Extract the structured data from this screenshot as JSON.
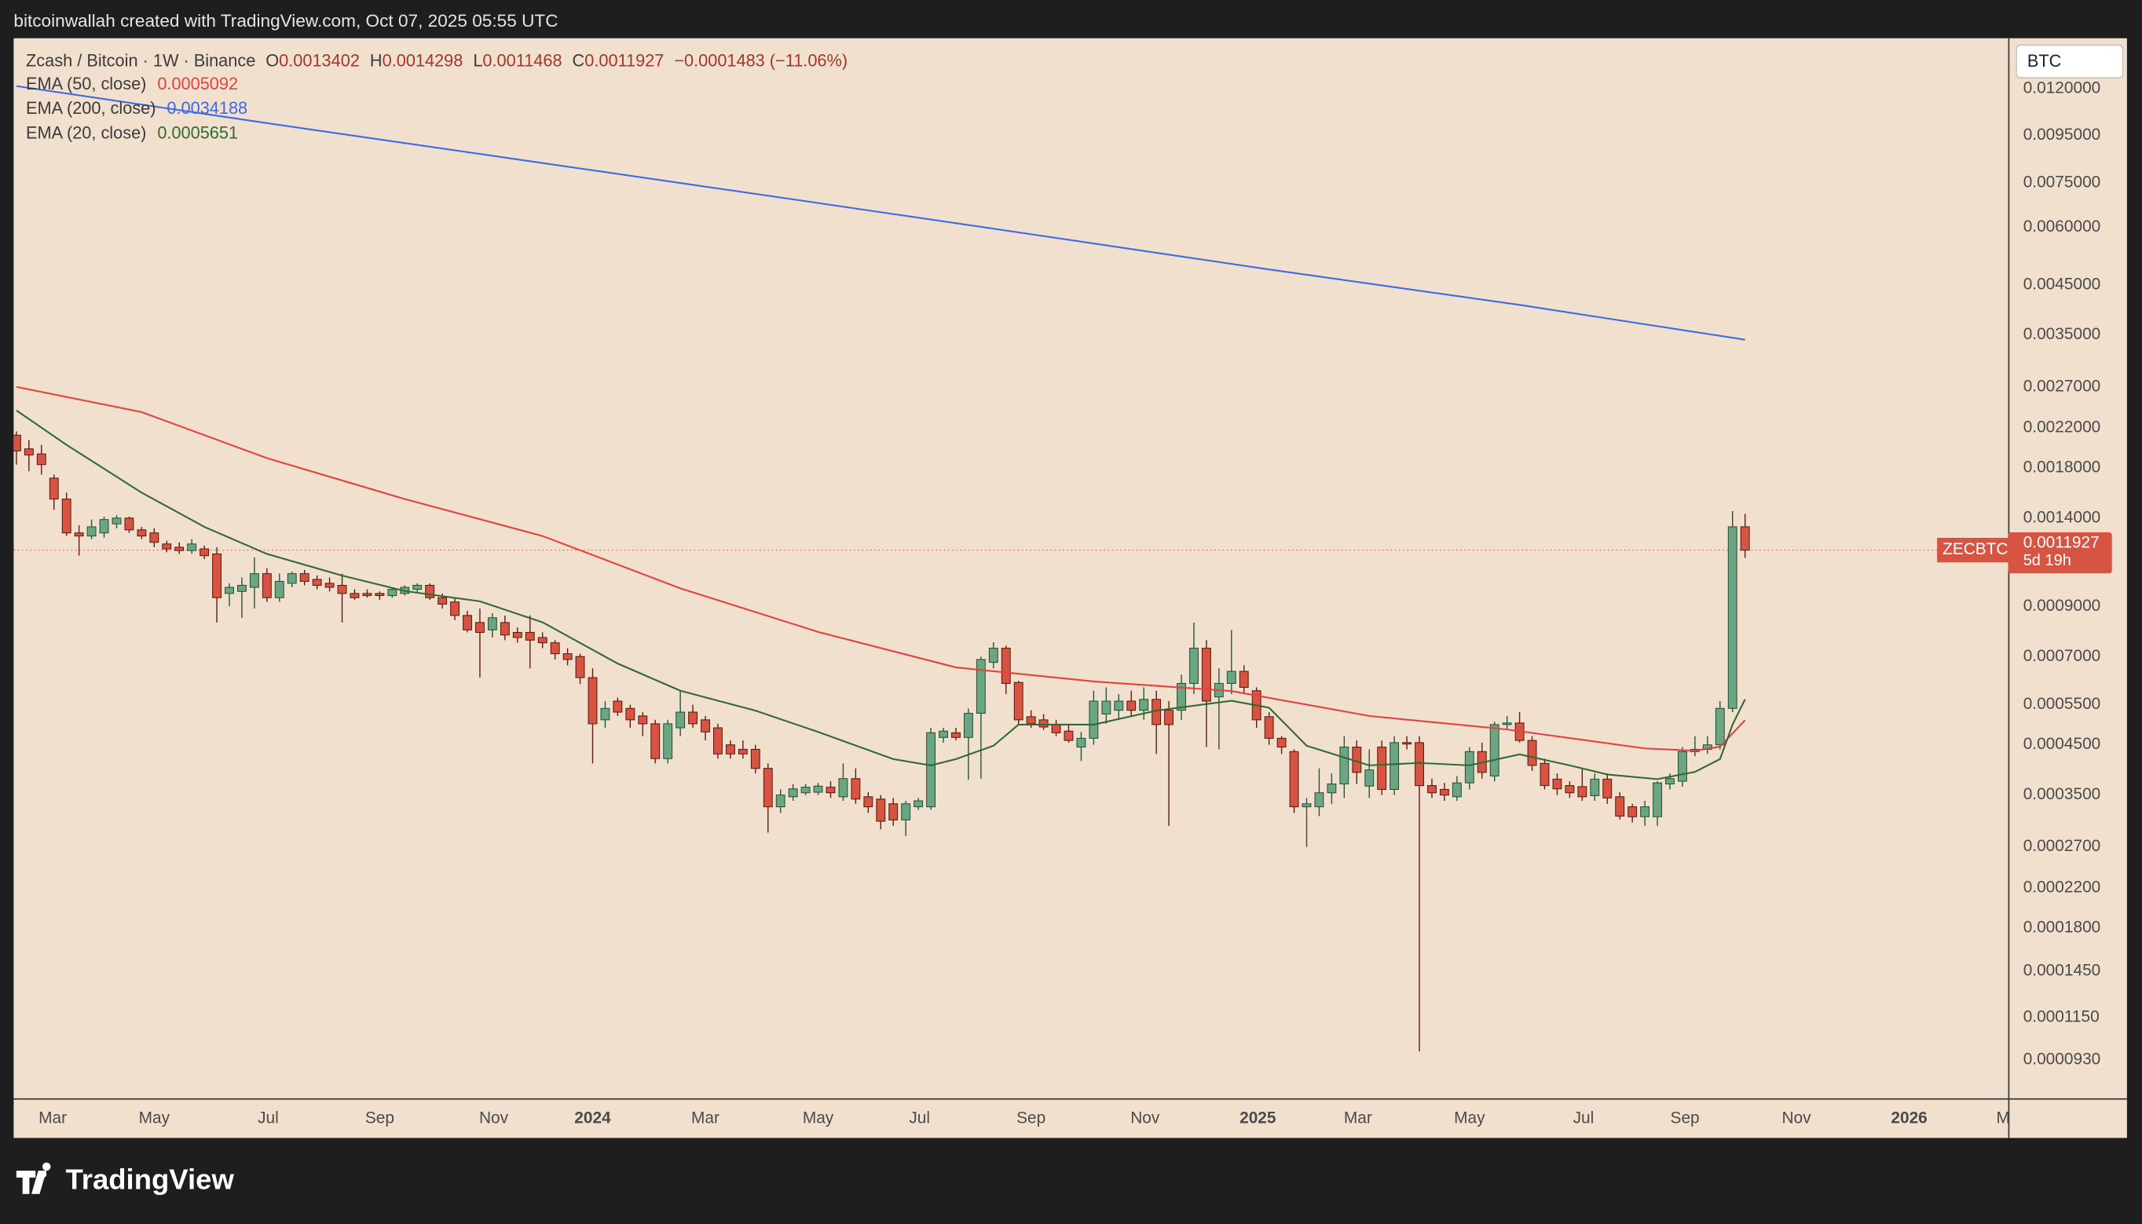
{
  "header": {
    "text": "bitcoinwallah created with TradingView.com, Oct 07, 2025 05:55 UTC"
  },
  "chart_data": {
    "type": "candlestick",
    "title": "Zcash / Bitcoin · 1W · Binance",
    "symbol": "ZECBTC",
    "countdown": "5d 19h",
    "currency": "BTC",
    "ohlc_prefixes": [
      "O",
      "H",
      "L",
      "C"
    ],
    "change_label": "−0.0001483 (−11.06%)",
    "up_color": "#6ba583",
    "up_border": "#225437",
    "down_color": "#d75442",
    "down_border": "#5b1a13",
    "candles": [
      [
        0.00212,
        0.00216,
        0.00183,
        0.00196
      ],
      [
        0.00198,
        0.00207,
        0.00177,
        0.00192
      ],
      [
        0.00193,
        0.00202,
        0.00174,
        0.00183
      ],
      [
        0.00171,
        0.00174,
        0.00146,
        0.00154
      ],
      [
        0.00154,
        0.00159,
        0.00128,
        0.0013
      ],
      [
        0.0013,
        0.00135,
        0.00116,
        0.00128
      ],
      [
        0.00128,
        0.00139,
        0.00126,
        0.00134
      ],
      [
        0.0013,
        0.00141,
        0.00127,
        0.00139
      ],
      [
        0.00136,
        0.00142,
        0.00133,
        0.0014
      ],
      [
        0.0014,
        0.00141,
        0.0013,
        0.00132
      ],
      [
        0.00132,
        0.00134,
        0.00126,
        0.00128
      ],
      [
        0.0013,
        0.00133,
        0.00121,
        0.00124
      ],
      [
        0.00123,
        0.00125,
        0.00118,
        0.0012
      ],
      [
        0.00121,
        0.00124,
        0.00117,
        0.00119
      ],
      [
        0.00119,
        0.00126,
        0.00117,
        0.00123
      ],
      [
        0.0012,
        0.00122,
        0.00114,
        0.00116
      ],
      [
        0.00117,
        0.00121,
        0.00083,
        0.00094
      ],
      [
        0.00096,
        0.00101,
        0.0009,
        0.00099
      ],
      [
        0.00097,
        0.00104,
        0.00085,
        0.001
      ],
      [
        0.00099,
        0.00115,
        0.00089,
        0.00106
      ],
      [
        0.00106,
        0.00109,
        0.00092,
        0.00094
      ],
      [
        0.00094,
        0.00106,
        0.00092,
        0.00102
      ],
      [
        0.00101,
        0.00107,
        0.00099,
        0.00106
      ],
      [
        0.00106,
        0.00108,
        0.001,
        0.00102
      ],
      [
        0.00103,
        0.00105,
        0.00098,
        0.001
      ],
      [
        0.00101,
        0.00104,
        0.00097,
        0.00099
      ],
      [
        0.001,
        0.00106,
        0.00083,
        0.00096
      ],
      [
        0.00096,
        0.00098,
        0.00093,
        0.00094
      ],
      [
        0.00096,
        0.00098,
        0.00094,
        0.00095
      ],
      [
        0.00096,
        0.00097,
        0.00093,
        0.00095
      ],
      [
        0.00095,
        0.00099,
        0.00094,
        0.00098
      ],
      [
        0.00096,
        0.001,
        0.00095,
        0.00099
      ],
      [
        0.00098,
        0.00101,
        0.00096,
        0.001
      ],
      [
        0.001,
        0.00101,
        0.00093,
        0.00094
      ],
      [
        0.00094,
        0.00096,
        0.00089,
        0.00091
      ],
      [
        0.00092,
        0.00094,
        0.00084,
        0.00086
      ],
      [
        0.00086,
        0.00088,
        0.00079,
        0.0008
      ],
      [
        0.00083,
        0.00089,
        0.00063,
        0.00079
      ],
      [
        0.0008,
        0.00087,
        0.00077,
        0.00085
      ],
      [
        0.00083,
        0.00086,
        0.00076,
        0.00078
      ],
      [
        0.00079,
        0.00081,
        0.00075,
        0.00077
      ],
      [
        0.00079,
        0.00086,
        0.00066,
        0.00076
      ],
      [
        0.00077,
        0.00079,
        0.00073,
        0.00075
      ],
      [
        0.00075,
        0.00076,
        0.00069,
        0.00071
      ],
      [
        0.00071,
        0.00073,
        0.00067,
        0.00069
      ],
      [
        0.0007,
        0.00071,
        0.00061,
        0.00063
      ],
      [
        0.00063,
        0.00066,
        0.00041,
        0.0005
      ],
      [
        0.00051,
        0.00056,
        0.00049,
        0.00054
      ],
      [
        0.00056,
        0.00057,
        0.00052,
        0.00053
      ],
      [
        0.00054,
        0.00055,
        0.00049,
        0.00051
      ],
      [
        0.00052,
        0.00053,
        0.00047,
        0.0005
      ],
      [
        0.0005,
        0.00051,
        0.00041,
        0.00042
      ],
      [
        0.00042,
        0.00051,
        0.00041,
        0.0005
      ],
      [
        0.00049,
        0.00059,
        0.00047,
        0.00053
      ],
      [
        0.00053,
        0.00055,
        0.00049,
        0.0005
      ],
      [
        0.00051,
        0.00052,
        0.00046,
        0.00048
      ],
      [
        0.00049,
        0.0005,
        0.00042,
        0.00043
      ],
      [
        0.00045,
        0.00046,
        0.00042,
        0.00043
      ],
      [
        0.00044,
        0.00046,
        0.00042,
        0.00043
      ],
      [
        0.00044,
        0.00045,
        0.00039,
        0.0004
      ],
      [
        0.0004,
        0.00041,
        0.00029,
        0.00033
      ],
      [
        0.00033,
        0.00036,
        0.00032,
        0.00035
      ],
      [
        0.000347,
        0.00037,
        0.00034,
        0.000361
      ],
      [
        0.000354,
        0.00037,
        0.00035,
        0.000364
      ],
      [
        0.000355,
        0.000372,
        0.00035,
        0.000366
      ],
      [
        0.000364,
        0.000375,
        0.000345,
        0.000354
      ],
      [
        0.000347,
        0.00041,
        0.00034,
        0.00038
      ],
      [
        0.00038,
        0.0004,
        0.000335,
        0.000343
      ],
      [
        0.000347,
        0.000355,
        0.00032,
        0.00033
      ],
      [
        0.000343,
        0.00035,
        0.000295,
        0.000307
      ],
      [
        0.000335,
        0.000345,
        0.0003,
        0.000309
      ],
      [
        0.000309,
        0.00034,
        0.000285,
        0.000335
      ],
      [
        0.00033,
        0.000345,
        0.000325,
        0.00034
      ],
      [
        0.00033,
        0.00049,
        0.000325,
        0.000478
      ],
      [
        0.000467,
        0.00049,
        0.000455,
        0.000482
      ],
      [
        0.000478,
        0.00049,
        0.00046,
        0.000467
      ],
      [
        0.000467,
        0.00054,
        0.000378,
        0.000527
      ],
      [
        0.000527,
        0.0007,
        0.00038,
        0.00069
      ],
      [
        0.00068,
        0.000752,
        0.00066,
        0.00073
      ],
      [
        0.00073,
        0.00074,
        0.00058,
        0.000612
      ],
      [
        0.000615,
        0.00062,
        0.0005,
        0.00051
      ],
      [
        0.000518,
        0.000535,
        0.00049,
        0.0005
      ],
      [
        0.00051,
        0.000525,
        0.000485,
        0.000492
      ],
      [
        0.000498,
        0.00051,
        0.00047,
        0.000478
      ],
      [
        0.000482,
        0.0005,
        0.000455,
        0.00046
      ],
      [
        0.000445,
        0.00048,
        0.000415,
        0.000465
      ],
      [
        0.000465,
        0.00059,
        0.00045,
        0.00056
      ],
      [
        0.000525,
        0.0006,
        0.0005,
        0.00056
      ],
      [
        0.000535,
        0.00058,
        0.00051,
        0.00056
      ],
      [
        0.00056,
        0.00059,
        0.00052,
        0.000535
      ],
      [
        0.000535,
        0.0006,
        0.00051,
        0.000565
      ],
      [
        0.000565,
        0.00059,
        0.00043,
        0.000498
      ],
      [
        0.000535,
        0.00056,
        0.0003,
        0.000498
      ],
      [
        0.000535,
        0.00064,
        0.00051,
        0.000612
      ],
      [
        0.000612,
        0.00083,
        0.00058,
        0.00073
      ],
      [
        0.00073,
        0.00076,
        0.000445,
        0.00056
      ],
      [
        0.000572,
        0.00066,
        0.00044,
        0.000612
      ],
      [
        0.000612,
        0.0008,
        0.00058,
        0.00065
      ],
      [
        0.00065,
        0.00067,
        0.00058,
        0.0006
      ],
      [
        0.00059,
        0.0006,
        0.00049,
        0.00051
      ],
      [
        0.000518,
        0.00053,
        0.00045,
        0.000465
      ],
      [
        0.000465,
        0.00047,
        0.00043,
        0.000445
      ],
      [
        0.000435,
        0.00044,
        0.00032,
        0.00033
      ],
      [
        0.00033,
        0.000345,
        0.00027,
        0.000335
      ],
      [
        0.00033,
        0.0004,
        0.000315,
        0.000354
      ],
      [
        0.000354,
        0.00039,
        0.000335,
        0.00037
      ],
      [
        0.00037,
        0.00047,
        0.000345,
        0.000445
      ],
      [
        0.000445,
        0.00046,
        0.00037,
        0.000392
      ],
      [
        0.000366,
        0.00044,
        0.000345,
        0.000397
      ],
      [
        0.000445,
        0.00046,
        0.00035,
        0.00036
      ],
      [
        0.00036,
        0.00047,
        0.00035,
        0.000455
      ],
      [
        0.000455,
        0.00047,
        0.00044,
        0.000452
      ],
      [
        0.000455,
        0.00047,
        9.7e-05,
        0.000367
      ],
      [
        0.000367,
        0.00038,
        0.000345,
        0.000354
      ],
      [
        0.00036,
        0.000372,
        0.00034,
        0.00035
      ],
      [
        0.000347,
        0.000385,
        0.00034,
        0.000372
      ],
      [
        0.000372,
        0.000445,
        0.00036,
        0.000435
      ],
      [
        0.000435,
        0.000455,
        0.00038,
        0.000392
      ],
      [
        0.000385,
        0.000505,
        0.000375,
        0.000498
      ],
      [
        0.000498,
        0.00052,
        0.000485,
        0.000502
      ],
      [
        0.000502,
        0.00053,
        0.000455,
        0.00046
      ],
      [
        0.00046,
        0.00047,
        0.000395,
        0.000406
      ],
      [
        0.00041,
        0.00042,
        0.00036,
        0.000367
      ],
      [
        0.000379,
        0.00039,
        0.00035,
        0.000361
      ],
      [
        0.000367,
        0.000375,
        0.000345,
        0.000354
      ],
      [
        0.000365,
        0.0004,
        0.00034,
        0.000347
      ],
      [
        0.000349,
        0.00039,
        0.00034,
        0.000379
      ],
      [
        0.000379,
        0.00039,
        0.000335,
        0.000345
      ],
      [
        0.000347,
        0.000355,
        0.00031,
        0.000315
      ],
      [
        0.00033,
        0.000335,
        0.000305,
        0.000314
      ],
      [
        0.000314,
        0.00034,
        0.0003,
        0.00033
      ],
      [
        0.000314,
        0.000375,
        0.0003,
        0.000372
      ],
      [
        0.00037,
        0.00039,
        0.00036,
        0.00038
      ],
      [
        0.000375,
        0.000445,
        0.000365,
        0.000435
      ],
      [
        0.000435,
        0.00047,
        0.000425,
        0.00044
      ],
      [
        0.00044,
        0.00047,
        0.00043,
        0.00045
      ],
      [
        0.00045,
        0.00056,
        0.00044,
        0.00054
      ],
      [
        0.00054,
        0.00145,
        0.00053,
        0.0013402
      ],
      [
        0.0013402,
        0.0014298,
        0.0011468,
        0.0011927
      ]
    ],
    "series": [
      {
        "name": "EMA (50, close)",
        "type": "line",
        "color": "#e5413f",
        "x": [
          0,
          10,
          20,
          31,
          42,
          53,
          64,
          75,
          86,
          97,
          108,
          119,
          130,
          134,
          136,
          138
        ],
        "values": [
          0.0027,
          0.00238,
          0.00189,
          0.00154,
          0.00128,
          0.000985,
          0.000792,
          0.000663,
          0.000618,
          0.000589,
          0.00052,
          0.000486,
          0.000442,
          0.000437,
          0.000446,
          0.0005092
        ]
      },
      {
        "name": "EMA (200, close)",
        "type": "line",
        "color": "#3b6ae8",
        "x": [
          0,
          20,
          40,
          60,
          80,
          100,
          120,
          138
        ],
        "values": [
          0.01217,
          0.01011,
          0.00843,
          0.00703,
          0.00585,
          0.00486,
          0.00407,
          0.0034188
        ]
      },
      {
        "name": "EMA (20, close)",
        "type": "line",
        "color": "#2f6b30",
        "x": [
          0,
          4,
          10,
          15,
          20,
          26,
          31,
          37,
          42,
          48,
          53,
          59,
          64,
          70,
          73,
          75,
          78,
          80,
          86,
          91,
          97,
          100,
          103,
          108,
          112,
          116,
          120,
          124,
          127,
          131,
          134,
          136,
          137,
          138
        ],
        "values": [
          0.0024,
          0.00202,
          0.00159,
          0.00134,
          0.00117,
          0.00105,
          0.000972,
          0.000923,
          0.000831,
          0.000676,
          0.00059,
          0.000534,
          0.00048,
          0.000419,
          0.000406,
          0.000419,
          0.000448,
          0.000498,
          0.000498,
          0.000534,
          0.000561,
          0.000542,
          0.000448,
          0.000406,
          0.000411,
          0.000406,
          0.000429,
          0.000406,
          0.000388,
          0.000379,
          0.000393,
          0.000419,
          0.000498,
          0.0005651
        ]
      }
    ],
    "xlim": [
      -0.22,
      159
    ],
    "xticks": [
      {
        "value": 2.9,
        "label": "Mar"
      },
      {
        "value": 11.0,
        "label": "May"
      },
      {
        "value": 20.1,
        "label": "Jul"
      },
      {
        "value": 29.0,
        "label": "Sep"
      },
      {
        "value": 38.1,
        "label": "Nov"
      },
      {
        "value": 46.0,
        "label": "2024"
      },
      {
        "value": 55.0,
        "label": "Mar"
      },
      {
        "value": 64.0,
        "label": "May"
      },
      {
        "value": 72.1,
        "label": "Jul"
      },
      {
        "value": 81.0,
        "label": "Sep"
      },
      {
        "value": 90.1,
        "label": "Nov"
      },
      {
        "value": 99.1,
        "label": "2025"
      },
      {
        "value": 107.1,
        "label": "Mar"
      },
      {
        "value": 116.0,
        "label": "May"
      },
      {
        "value": 125.1,
        "label": "Jul"
      },
      {
        "value": 133.2,
        "label": "Sep"
      },
      {
        "value": 142.1,
        "label": "Nov"
      },
      {
        "value": 151.1,
        "label": "2026"
      },
      {
        "value": 158.6,
        "label": "M"
      }
    ],
    "ylim": [
      7.67e-05,
      0.01546
    ],
    "log_scale": true,
    "grid": false,
    "yticks": [
      {
        "value": 0.012,
        "label": "0.0120000"
      },
      {
        "value": 0.0095,
        "label": "0.0095000"
      },
      {
        "value": 0.0075,
        "label": "0.0075000"
      },
      {
        "value": 0.006,
        "label": "0.0060000"
      },
      {
        "value": 0.0045,
        "label": "0.0045000"
      },
      {
        "value": 0.0035,
        "label": "0.0035000"
      },
      {
        "value": 0.0027,
        "label": "0.0027000"
      },
      {
        "value": 0.0022,
        "label": "0.0022000"
      },
      {
        "value": 0.0018,
        "label": "0.0018000"
      },
      {
        "value": 0.0014,
        "label": "0.0014000"
      },
      {
        "value": 0.0009,
        "label": "0.0009000"
      },
      {
        "value": 0.0007,
        "label": "0.0007000"
      },
      {
        "value": 0.00055,
        "label": "0.0005500"
      },
      {
        "value": 0.00045,
        "label": "0.0004500"
      },
      {
        "value": 0.00035,
        "label": "0.0003500"
      },
      {
        "value": 0.00027,
        "label": "0.0002700"
      },
      {
        "value": 0.00022,
        "label": "0.0002200"
      },
      {
        "value": 0.00018,
        "label": "0.0001800"
      },
      {
        "value": 0.000145,
        "label": "0.0001450"
      },
      {
        "value": 0.000115,
        "label": "0.0001150"
      },
      {
        "value": 9.3e-05,
        "label": "0.0000930"
      }
    ]
  },
  "footer": {
    "brand": "TradingView"
  }
}
